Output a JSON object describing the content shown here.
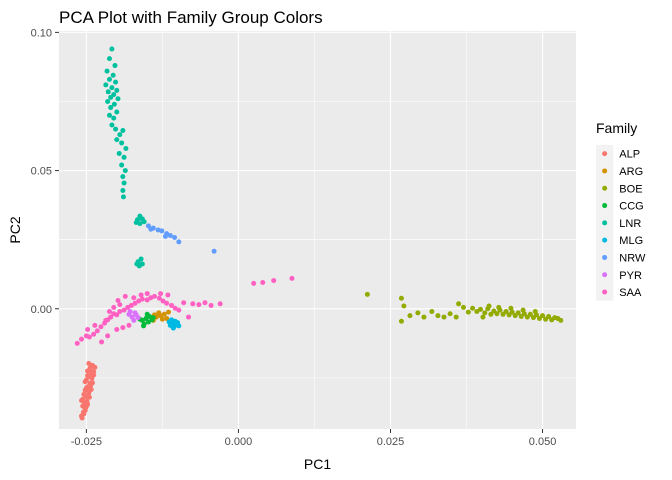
{
  "chart_data": {
    "type": "scatter",
    "title": "PCA Plot with Family Group Colors",
    "xlabel": "PC1",
    "ylabel": "PC2",
    "xlim": [
      -0.0295,
      0.0555
    ],
    "ylim": [
      -0.0435,
      0.1005
    ],
    "x_ticks": [
      -0.025,
      0.0,
      0.025,
      0.05
    ],
    "x_tick_labels": [
      "-0.025",
      "0.000",
      "0.025",
      "0.050"
    ],
    "y_ticks": [
      0.0,
      0.05,
      0.1
    ],
    "y_tick_labels": [
      "0.00",
      "0.05",
      "0.10"
    ],
    "grid": true,
    "legend_title": "Family",
    "legend_position": "right",
    "series": [
      {
        "name": "ALP",
        "color": "#F8766D",
        "points": [
          [
            -0.0258,
            -0.0388
          ],
          [
            -0.0255,
            -0.0375
          ],
          [
            -0.0252,
            -0.0362
          ],
          [
            -0.0249,
            -0.035
          ],
          [
            -0.0253,
            -0.034
          ],
          [
            -0.0256,
            -0.0328
          ],
          [
            -0.025,
            -0.0318
          ],
          [
            -0.0246,
            -0.0305
          ],
          [
            -0.0252,
            -0.0295
          ],
          [
            -0.0248,
            -0.0282
          ],
          [
            -0.0244,
            -0.027
          ],
          [
            -0.025,
            -0.0258
          ],
          [
            -0.0246,
            -0.0245
          ],
          [
            -0.0242,
            -0.0235
          ],
          [
            -0.0248,
            -0.0225
          ],
          [
            -0.0244,
            -0.0215
          ],
          [
            -0.024,
            -0.0205
          ],
          [
            -0.0246,
            -0.0198
          ],
          [
            -0.0236,
            -0.0212
          ],
          [
            -0.0238,
            -0.024
          ],
          [
            -0.024,
            -0.0268
          ],
          [
            -0.0242,
            -0.0292
          ],
          [
            -0.0245,
            -0.032
          ],
          [
            -0.0248,
            -0.0345
          ],
          [
            -0.0252,
            -0.0368
          ],
          [
            -0.0256,
            -0.0352
          ],
          [
            -0.0258,
            -0.0332
          ],
          [
            -0.0254,
            -0.031
          ],
          [
            -0.025,
            -0.0287
          ],
          [
            -0.0252,
            -0.0264
          ],
          [
            -0.0248,
            -0.0242
          ],
          [
            -0.0244,
            -0.0222
          ],
          [
            -0.0241,
            -0.0252
          ],
          [
            -0.0243,
            -0.0278
          ],
          [
            -0.0246,
            -0.03
          ],
          [
            -0.0249,
            -0.0335
          ],
          [
            -0.0251,
            -0.0358
          ],
          [
            -0.0254,
            -0.038
          ],
          [
            -0.0257,
            -0.0395
          ],
          [
            -0.0238,
            -0.0228
          ]
        ]
      },
      {
        "name": "ARG",
        "color": "#D39200",
        "points": [
          [
            -0.0135,
            -0.003
          ],
          [
            -0.0128,
            -0.0025
          ],
          [
            -0.0122,
            -0.002
          ],
          [
            -0.0118,
            -0.0035
          ],
          [
            -0.0125,
            -0.0038
          ],
          [
            -0.014,
            -0.0042
          ],
          [
            -0.0131,
            -0.0015
          ],
          [
            -0.0115,
            -0.0012
          ],
          [
            -0.0138,
            -0.0022
          ]
        ]
      },
      {
        "name": "BOE",
        "color": "#93AA00",
        "points": [
          [
            0.0212,
            0.0052
          ],
          [
            0.0268,
            0.0038
          ],
          [
            0.0272,
            0.001
          ],
          [
            0.0282,
            -0.0025
          ],
          [
            0.0268,
            -0.0045
          ],
          [
            0.0295,
            -0.0015
          ],
          [
            0.0305,
            -0.003
          ],
          [
            0.0318,
            -0.001
          ],
          [
            0.0328,
            -0.0025
          ],
          [
            0.0338,
            -0.003
          ],
          [
            0.0348,
            -0.0018
          ],
          [
            0.0358,
            -0.003
          ],
          [
            0.0362,
            0.0018
          ],
          [
            0.037,
            0.0005
          ],
          [
            0.0378,
            -0.0012
          ],
          [
            0.0385,
            0.0002
          ],
          [
            0.0392,
            -0.001
          ],
          [
            0.0398,
            -0.0002
          ],
          [
            0.0405,
            -0.0015
          ],
          [
            0.041,
            0.0
          ],
          [
            0.0415,
            -0.002
          ],
          [
            0.042,
            -0.0008
          ],
          [
            0.0425,
            -0.0018
          ],
          [
            0.043,
            -0.0005
          ],
          [
            0.0435,
            -0.002
          ],
          [
            0.044,
            -0.001
          ],
          [
            0.0445,
            -0.0022
          ],
          [
            0.045,
            -0.0012
          ],
          [
            0.0455,
            -0.0025
          ],
          [
            0.046,
            -0.0015
          ],
          [
            0.0465,
            -0.0028
          ],
          [
            0.047,
            -0.0018
          ],
          [
            0.0475,
            -0.003
          ],
          [
            0.048,
            -0.002
          ],
          [
            0.0485,
            -0.0032
          ],
          [
            0.049,
            -0.0022
          ],
          [
            0.0495,
            -0.0035
          ],
          [
            0.05,
            -0.0025
          ],
          [
            0.0505,
            -0.0038
          ],
          [
            0.051,
            -0.0028
          ],
          [
            0.0515,
            -0.004
          ],
          [
            0.052,
            -0.0032
          ],
          [
            0.0525,
            -0.0035
          ],
          [
            0.053,
            -0.0042
          ],
          [
            0.0402,
            -0.003
          ],
          [
            0.0412,
            0.001
          ],
          [
            0.0428,
            0.0005
          ],
          [
            0.0448,
            0.0002
          ],
          [
            0.0468,
            -0.0005
          ],
          [
            0.0488,
            -0.001
          ]
        ]
      },
      {
        "name": "CCG",
        "color": "#00BA38",
        "points": [
          [
            -0.0158,
            -0.0042
          ],
          [
            -0.0152,
            -0.0035
          ],
          [
            -0.0146,
            -0.0028
          ],
          [
            -0.0148,
            -0.0048
          ],
          [
            -0.0155,
            -0.0055
          ],
          [
            -0.0162,
            -0.0038
          ],
          [
            -0.0142,
            -0.004
          ],
          [
            -0.015,
            -0.002
          ],
          [
            -0.0156,
            -0.0062
          ],
          [
            -0.014,
            -0.0032
          ]
        ]
      },
      {
        "name": "LNR",
        "color": "#00C19F",
        "points": [
          [
            -0.0208,
            0.094
          ],
          [
            -0.0212,
            0.0905
          ],
          [
            -0.0203,
            0.088
          ],
          [
            -0.0216,
            0.086
          ],
          [
            -0.0206,
            0.0845
          ],
          [
            -0.0212,
            0.083
          ],
          [
            -0.0202,
            0.082
          ],
          [
            -0.0218,
            0.081
          ],
          [
            -0.0208,
            0.08
          ],
          [
            -0.02,
            0.079
          ],
          [
            -0.0214,
            0.0785
          ],
          [
            -0.0205,
            0.0775
          ],
          [
            -0.021,
            0.0765
          ],
          [
            -0.0198,
            0.076
          ],
          [
            -0.0215,
            0.075
          ],
          [
            -0.0204,
            0.074
          ],
          [
            -0.021,
            0.0728
          ],
          [
            -0.02,
            0.0712
          ],
          [
            -0.0212,
            0.07
          ],
          [
            -0.0205,
            0.069
          ],
          [
            -0.0208,
            0.0665
          ],
          [
            -0.0202,
            0.065
          ],
          [
            -0.0195,
            0.063
          ],
          [
            -0.019,
            0.0645
          ],
          [
            -0.02,
            0.0612
          ],
          [
            -0.0192,
            0.06
          ],
          [
            -0.0185,
            0.058
          ],
          [
            -0.0196,
            0.0562
          ],
          [
            -0.0188,
            0.0548
          ],
          [
            -0.0192,
            0.052
          ],
          [
            -0.0186,
            0.05
          ],
          [
            -0.019,
            0.0478
          ],
          [
            -0.0188,
            0.0455
          ],
          [
            -0.019,
            0.0428
          ],
          [
            -0.0189,
            0.0405
          ],
          [
            -0.0162,
            0.0335
          ],
          [
            -0.0158,
            0.0325
          ],
          [
            -0.0166,
            0.0322
          ],
          [
            -0.0155,
            0.0315
          ],
          [
            -0.0162,
            0.0308
          ],
          [
            -0.0168,
            0.0312
          ],
          [
            -0.016,
            0.018
          ],
          [
            -0.0165,
            0.017
          ],
          [
            -0.0158,
            0.0162
          ],
          [
            -0.0163,
            0.0155
          ],
          [
            -0.0167,
            0.0162
          ]
        ]
      },
      {
        "name": "MLG",
        "color": "#00B9E3",
        "points": [
          [
            -0.011,
            -0.004
          ],
          [
            -0.0108,
            -0.0052
          ],
          [
            -0.0106,
            -0.0065
          ],
          [
            -0.0102,
            -0.0058
          ],
          [
            -0.0112,
            -0.006
          ],
          [
            -0.0104,
            -0.0045
          ],
          [
            -0.01,
            -0.005
          ],
          [
            -0.0114,
            -0.0048
          ],
          [
            -0.0107,
            -0.007
          ],
          [
            -0.0098,
            -0.0062
          ]
        ]
      },
      {
        "name": "NRW",
        "color": "#619CFF",
        "points": [
          [
            -0.0148,
            0.03
          ],
          [
            -0.014,
            0.0292
          ],
          [
            -0.0132,
            0.0285
          ],
          [
            -0.0126,
            0.0282
          ],
          [
            -0.0118,
            0.0272
          ],
          [
            -0.0112,
            0.0265
          ],
          [
            -0.0105,
            0.0258
          ],
          [
            -0.0098,
            0.0242
          ],
          [
            -0.0144,
            0.0288
          ],
          [
            -0.012,
            0.0262
          ],
          [
            -0.004,
            0.0208
          ]
        ]
      },
      {
        "name": "PYR",
        "color": "#DB72FB",
        "points": [
          [
            -0.0175,
            -0.003
          ],
          [
            -0.0168,
            -0.0022
          ],
          [
            -0.018,
            -0.002
          ],
          [
            -0.0172,
            -0.0042
          ],
          [
            -0.0165,
            -0.0032
          ],
          [
            -0.0178,
            -0.001
          ],
          [
            -0.017,
            -0.0015
          ]
        ]
      },
      {
        "name": "SAA",
        "color": "#FF61C3",
        "points": [
          [
            -0.0265,
            -0.0125
          ],
          [
            -0.0258,
            -0.011
          ],
          [
            -0.025,
            -0.0098
          ],
          [
            -0.0245,
            -0.0102
          ],
          [
            -0.0238,
            -0.0092
          ],
          [
            -0.0232,
            -0.008
          ],
          [
            -0.0226,
            -0.0065
          ],
          [
            -0.022,
            -0.0052
          ],
          [
            -0.0215,
            -0.004
          ],
          [
            -0.021,
            -0.003
          ],
          [
            -0.0205,
            -0.0018
          ],
          [
            -0.02,
            -0.0022
          ],
          [
            -0.0195,
            -0.001
          ],
          [
            -0.0205,
            0.0005
          ],
          [
            -0.0195,
            0.0015
          ],
          [
            -0.0188,
            -0.0005
          ],
          [
            -0.0182,
            0.0005
          ],
          [
            -0.0176,
            0.0012
          ],
          [
            -0.017,
            0.002
          ],
          [
            -0.0164,
            0.0028
          ],
          [
            -0.0158,
            0.0035
          ],
          [
            -0.015,
            0.0032
          ],
          [
            -0.0144,
            0.004
          ],
          [
            -0.0138,
            0.0045
          ],
          [
            -0.013,
            0.0038
          ],
          [
            -0.0124,
            0.0028
          ],
          [
            -0.0118,
            0.002
          ],
          [
            -0.011,
            0.0012
          ],
          [
            -0.0104,
            0.0002
          ],
          [
            -0.0098,
            -0.0005
          ],
          [
            -0.009,
            0.0022
          ],
          [
            -0.0082,
            -0.003
          ],
          [
            -0.0075,
            0.0018
          ],
          [
            -0.0065,
            0.0015
          ],
          [
            -0.0055,
            0.0022
          ],
          [
            -0.0045,
            0.0012
          ],
          [
            -0.003,
            0.0018
          ],
          [
            0.0025,
            0.0092
          ],
          [
            0.004,
            0.0095
          ],
          [
            0.0058,
            0.0102
          ],
          [
            0.0088,
            0.011
          ],
          [
            -0.0225,
            -0.012
          ],
          [
            -0.0215,
            -0.0098
          ],
          [
            -0.02,
            -0.0075
          ],
          [
            -0.019,
            -0.0068
          ],
          [
            -0.018,
            -0.006
          ],
          [
            -0.0248,
            -0.0075
          ],
          [
            -0.0236,
            -0.006
          ],
          [
            -0.0218,
            -0.0042
          ],
          [
            -0.0212,
            -0.001
          ],
          [
            -0.0198,
            0.003
          ],
          [
            -0.0186,
            0.0045
          ],
          [
            -0.0172,
            0.004
          ],
          [
            -0.016,
            0.005
          ],
          [
            -0.015,
            0.0055
          ],
          [
            -0.0128,
            0.0055
          ],
          [
            -0.0116,
            0.005
          ]
        ]
      }
    ]
  }
}
